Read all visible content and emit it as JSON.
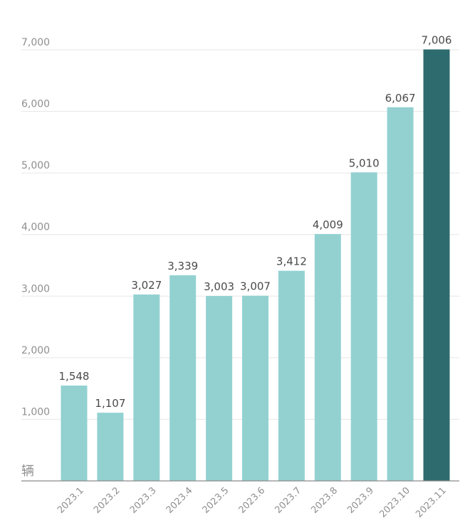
{
  "chart_data": {
    "type": "bar",
    "title": "",
    "xlabel": "",
    "ylabel": "",
    "unit": "辆",
    "categories": [
      "2023.1",
      "2023.2",
      "2023.3",
      "2023.4",
      "2023.5",
      "2023.6",
      "2023.7",
      "2023.8",
      "2023.9",
      "2023.10",
      "2023.11"
    ],
    "values": [
      1548,
      1107,
      3027,
      3339,
      3003,
      3007,
      3412,
      4009,
      5010,
      6067,
      7006
    ],
    "value_labels": [
      "1,548",
      "1,107",
      "3,027",
      "3,339",
      "3,003",
      "3,007",
      "3,412",
      "4,009",
      "5,010",
      "6,067",
      "7,006"
    ],
    "ylim": [
      0,
      7000
    ],
    "yticks": [
      1000,
      2000,
      3000,
      4000,
      5000,
      6000,
      7000
    ],
    "ytick_labels": [
      "1,000",
      "2,000",
      "3,000",
      "4,000",
      "5,000",
      "6,000",
      "7,000"
    ],
    "grid": true,
    "colors": {
      "bar": "#93d1d1",
      "highlight": "#2e6b6e",
      "highlight_index": 10
    }
  }
}
